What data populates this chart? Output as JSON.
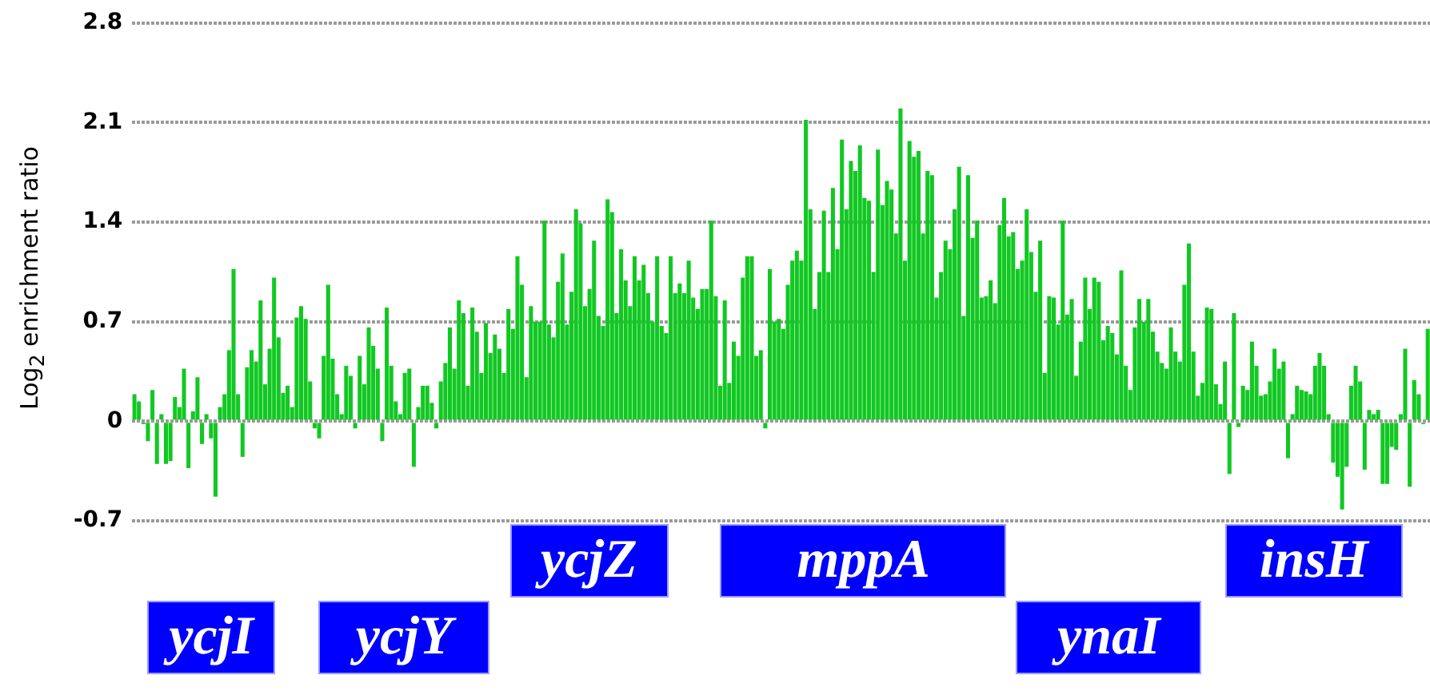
{
  "chart_data": {
    "type": "bar",
    "ylabel": "Log$_{2}$ enrichment ratio",
    "color": "#11c822",
    "ylim": [
      -0.7,
      2.8
    ],
    "yticks": [
      -0.7,
      0,
      0.7,
      1.4,
      2.1,
      2.8
    ],
    "grid": "y",
    "annotations": [
      "ycjZ",
      "mppA",
      "insH",
      "ycjI",
      "ycjY",
      "ynaI"
    ],
    "categories": [
      null,
      null,
      null,
      null,
      null,
      null,
      null,
      null,
      null,
      null,
      null,
      null,
      null,
      null,
      null,
      null,
      null,
      null,
      null,
      null,
      null,
      null,
      null,
      null,
      null,
      null,
      null,
      null,
      null,
      null,
      null,
      null,
      null,
      null,
      null,
      null,
      null,
      null,
      null,
      null,
      null,
      null,
      null,
      null,
      null,
      null,
      null,
      null,
      null,
      null,
      null,
      null,
      null,
      null,
      null,
      null,
      null,
      null,
      null,
      null,
      null,
      null,
      null,
      null,
      null,
      null,
      null,
      null,
      null,
      null,
      null,
      null,
      null,
      null,
      null,
      null,
      null,
      null,
      null,
      null,
      null,
      null,
      null,
      null,
      null,
      null,
      null,
      null,
      null,
      null,
      null,
      null,
      null,
      null,
      null,
      null,
      null,
      null,
      null,
      null,
      null,
      null,
      null,
      null,
      null,
      null,
      null,
      null,
      null,
      null,
      null,
      null,
      null,
      null,
      null,
      null,
      null,
      null,
      null,
      null,
      null,
      null,
      null,
      null,
      null,
      null,
      null,
      null,
      null,
      null,
      null,
      null,
      null,
      null,
      null,
      null,
      null,
      null,
      null,
      null,
      null,
      null,
      null,
      null,
      null,
      null,
      null,
      null,
      null,
      null,
      null,
      null,
      null,
      null,
      null,
      null,
      null,
      null,
      null,
      null,
      null,
      null,
      null,
      null,
      null,
      null,
      null,
      null,
      null,
      null,
      null,
      null,
      null,
      null,
      null,
      null,
      null,
      null,
      null,
      null,
      null,
      null,
      null,
      null,
      null,
      null,
      null,
      null,
      null,
      null,
      null,
      null,
      null,
      null,
      null,
      null,
      null,
      null,
      null,
      null,
      null,
      null,
      null,
      null,
      null,
      null,
      null,
      null,
      null,
      null,
      null,
      null,
      null,
      null,
      null,
      null,
      null,
      null,
      null,
      null,
      null,
      null,
      null,
      null,
      null,
      null,
      null,
      null,
      null,
      null,
      null,
      null,
      null,
      null,
      null,
      null,
      null,
      null,
      null,
      null,
      null,
      null,
      null,
      null,
      null,
      null,
      null,
      null,
      null,
      null,
      null,
      null,
      null,
      null,
      null,
      null,
      null,
      null,
      null,
      null,
      null,
      null,
      null,
      null,
      null,
      null,
      null,
      null,
      null,
      null,
      null,
      null,
      null,
      null,
      null,
      null,
      null,
      null,
      null,
      null,
      null,
      null,
      null,
      null,
      null,
      null,
      null,
      null
    ],
    "values": [
      0.19,
      0.14,
      -0.02,
      -0.14,
      0.22,
      -0.3,
      0.05,
      -0.3,
      -0.28,
      0.17,
      0.1,
      0.37,
      -0.33,
      0.07,
      0.31,
      -0.16,
      0.05,
      -0.12,
      -0.53,
      0.1,
      0.19,
      0.5,
      1.07,
      0.19,
      -0.25,
      0.38,
      0.5,
      0.42,
      0.85,
      0.26,
      0.51,
      1.01,
      0.59,
      0.2,
      0.25,
      0.1,
      0.73,
      0.81,
      0.72,
      0.28,
      -0.05,
      -0.12,
      0.46,
      0.96,
      0.44,
      0.19,
      0.05,
      0.39,
      0.32,
      -0.05,
      0.46,
      0.26,
      0.66,
      0.53,
      0.37,
      -0.14,
      0.8,
      0.39,
      0.14,
      0.05,
      0.34,
      0.37,
      -0.32,
      0.1,
      0.25,
      0.25,
      0.13,
      -0.05,
      0.28,
      0.41,
      0.66,
      0.37,
      0.85,
      0.76,
      0.25,
      0.8,
      0.63,
      0.34,
      0.69,
      0.48,
      0.61,
      0.51,
      0.34,
      0.79,
      0.65,
      1.16,
      0.96,
      0.31,
      0.81,
      0.7,
      0.7,
      1.41,
      0.68,
      0.59,
      0.98,
      1.18,
      0.68,
      0.91,
      1.49,
      1.39,
      0.81,
      0.93,
      1.27,
      0.74,
      0.67,
      1.56,
      1.47,
      0.76,
      1.21,
      0.99,
      0.81,
      1.16,
      0.99,
      1.1,
      0.9,
      0.7,
      1.16,
      0.67,
      0.62,
      1.16,
      0.9,
      0.97,
      0.9,
      1.13,
      0.87,
      0.79,
      0.93,
      0.93,
      1.41,
      0.88,
      0.25,
      0.85,
      0.27,
      0.56,
      0.46,
      1.01,
      1.16,
      1.16,
      0.46,
      0.5,
      -0.05,
      1.07,
      0.7,
      0.72,
      0.65,
      0.96,
      1.13,
      1.2,
      1.13,
      2.12,
      1.49,
      0.79,
      1.05,
      1.48,
      1.05,
      1.64,
      1.21,
      1.98,
      1.49,
      1.83,
      1.76,
      1.94,
      1.57,
      1.55,
      1.05,
      1.91,
      1.52,
      1.69,
      1.63,
      1.32,
      2.2,
      1.13,
      1.97,
      1.86,
      1.9,
      1.32,
      1.76,
      1.73,
      0.87,
      1.05,
      1.27,
      1.21,
      1.49,
      1.79,
      0.74,
      1.73,
      1.29,
      1.41,
      0.87,
      0.88,
      0.99,
      0.83,
      1.38,
      1.57,
      1.3,
      1.33,
      1.07,
      1.13,
      1.49,
      1.19,
      0.91,
      1.27,
      0.34,
      0.88,
      0.87,
      0.68,
      1.41,
      0.75,
      0.86,
      0.32,
      0.56,
      1.01,
      0.79,
      1.01,
      0.98,
      0.57,
      0.67,
      0.62,
      0.47,
      1.06,
      0.39,
      0.22,
      0.66,
      0.86,
      0.7,
      0.86,
      0.63,
      0.49,
      0.41,
      0.37,
      0.66,
      0.49,
      0.42,
      0.96,
      1.25,
      0.49,
      0.18,
      0.27,
      0.8,
      0.79,
      0.26,
      0.12,
      0.42,
      -0.37,
      0.76,
      -0.04,
      0.25,
      0.22,
      0.56,
      0.39,
      0.18,
      0.19,
      0.28,
      0.51,
      0.37,
      0.42,
      -0.26,
      0.05,
      0.25,
      0.22,
      0.21,
      0.19,
      0.39,
      0.48,
      0.39,
      0.05,
      -0.29,
      -0.39,
      -0.62,
      -0.32,
      0.25,
      0.39,
      0.28,
      -0.34,
      0.08,
      0.05,
      0.08,
      -0.44,
      -0.44,
      -0.18,
      -0.2,
      0.05,
      0.51,
      -0.46,
      0.29,
      0.19,
      -0.02,
      0.65
    ]
  }
}
